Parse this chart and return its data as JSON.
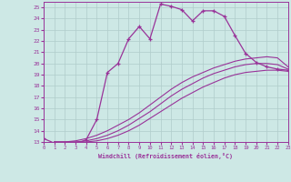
{
  "xlabel": "Windchill (Refroidissement éolien,°C)",
  "bg_color": "#cde8e5",
  "line_color": "#993399",
  "grid_color": "#b0ccca",
  "ylim": [
    13,
    25.5
  ],
  "xlim": [
    0,
    23
  ],
  "yticks": [
    13,
    14,
    15,
    16,
    17,
    18,
    19,
    20,
    21,
    22,
    23,
    24,
    25
  ],
  "xticks": [
    0,
    1,
    2,
    3,
    4,
    5,
    6,
    7,
    8,
    9,
    10,
    11,
    12,
    13,
    14,
    15,
    16,
    17,
    18,
    19,
    20,
    21,
    22,
    23
  ],
  "curve_x": [
    0,
    1,
    2,
    3,
    4,
    5,
    6,
    7,
    8,
    9,
    10,
    11,
    12,
    13,
    14,
    15,
    16,
    17,
    18,
    19,
    20,
    21,
    22,
    23
  ],
  "curve_y": [
    13.3,
    12.9,
    12.8,
    12.8,
    13.2,
    15.0,
    19.2,
    20.0,
    22.2,
    23.3,
    22.2,
    25.3,
    25.1,
    24.8,
    23.8,
    24.7,
    24.7,
    24.2,
    22.5,
    20.9,
    20.1,
    19.7,
    19.5,
    19.4
  ],
  "diag1_x": [
    1,
    2,
    3,
    4,
    5,
    6,
    7,
    8,
    9,
    10,
    11,
    12,
    13,
    14,
    15,
    16,
    17,
    18,
    19,
    20,
    21,
    22,
    23
  ],
  "diag1_y": [
    13.0,
    13.0,
    13.1,
    13.3,
    13.6,
    14.0,
    14.5,
    15.0,
    15.6,
    16.3,
    17.0,
    17.7,
    18.3,
    18.8,
    19.2,
    19.6,
    19.9,
    20.2,
    20.4,
    20.5,
    20.6,
    20.5,
    19.7
  ],
  "diag2_x": [
    1,
    2,
    3,
    4,
    5,
    6,
    7,
    8,
    9,
    10,
    11,
    12,
    13,
    14,
    15,
    16,
    17,
    18,
    19,
    20,
    21,
    22,
    23
  ],
  "diag2_y": [
    13.0,
    13.0,
    13.0,
    13.1,
    13.3,
    13.6,
    14.0,
    14.5,
    15.1,
    15.7,
    16.4,
    17.1,
    17.7,
    18.2,
    18.7,
    19.1,
    19.4,
    19.7,
    19.9,
    20.0,
    20.0,
    19.9,
    19.5
  ],
  "diag3_x": [
    1,
    2,
    3,
    4,
    5,
    6,
    7,
    8,
    9,
    10,
    11,
    12,
    13,
    14,
    15,
    16,
    17,
    18,
    19,
    20,
    21,
    22,
    23
  ],
  "diag3_y": [
    13.0,
    13.0,
    13.0,
    13.0,
    13.1,
    13.3,
    13.6,
    14.0,
    14.5,
    15.1,
    15.7,
    16.3,
    16.9,
    17.4,
    17.9,
    18.3,
    18.7,
    19.0,
    19.2,
    19.3,
    19.4,
    19.4,
    19.3
  ]
}
